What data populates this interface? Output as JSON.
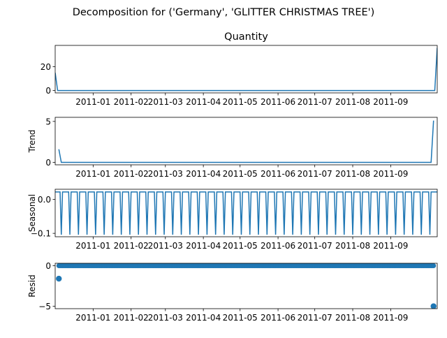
{
  "figure": {
    "suptitle": "Decomposition for ('Germany', 'GLITTER CHRISTMAS TREE')"
  },
  "chart_data": [
    {
      "type": "line",
      "title": "Quantity",
      "ylabel": "",
      "xlim": [
        "2010-12-01",
        "2011-10-09"
      ],
      "ylim": [
        -2,
        38
      ],
      "yticks": [
        0,
        20
      ],
      "xticks": [
        "2011-01",
        "2011-02",
        "2011-03",
        "2011-04",
        "2011-05",
        "2011-06",
        "2011-07",
        "2011-08",
        "2011-09"
      ],
      "color": "#1f77b4",
      "series": [
        {
          "x": [
            "2010-12-01",
            "2010-12-03",
            "2011-10-07",
            "2011-10-09"
          ],
          "y": [
            15,
            0,
            0,
            36
          ]
        }
      ]
    },
    {
      "type": "line",
      "title": "",
      "ylabel": "Trend",
      "xlim": [
        "2010-12-01",
        "2011-10-09"
      ],
      "ylim": [
        -0.3,
        5.5
      ],
      "yticks": [
        0,
        5
      ],
      "xticks": [
        "2011-01",
        "2011-02",
        "2011-03",
        "2011-04",
        "2011-05",
        "2011-06",
        "2011-07",
        "2011-08",
        "2011-09"
      ],
      "color": "#1f77b4",
      "series": [
        {
          "x": [
            "2010-12-04",
            "2010-12-06",
            "2011-10-04",
            "2011-10-06"
          ],
          "y": [
            1.6,
            0,
            0,
            5.1
          ]
        }
      ]
    },
    {
      "type": "line",
      "title": "",
      "ylabel": "Seasonal",
      "xlim": [
        "2010-12-01",
        "2011-10-09"
      ],
      "ylim": [
        -0.11,
        0.03
      ],
      "yticks": [
        0.0,
        -0.1
      ],
      "ytick_labels": [
        "0.0",
        "−0.1"
      ],
      "xticks": [
        "2011-01",
        "2011-02",
        "2011-03",
        "2011-04",
        "2011-05",
        "2011-06",
        "2011-07",
        "2011-08",
        "2011-09"
      ],
      "color": "#1f77b4",
      "series": [
        {
          "pattern": "weekly",
          "start": "2010-12-01",
          "end": "2011-10-09",
          "weekly_values": [
            0.022,
            0.022,
            0.022,
            0.022,
            0.022,
            -0.104,
            0.022
          ]
        }
      ]
    },
    {
      "type": "scatter",
      "title": "",
      "ylabel": "Resid",
      "xlim": [
        "2010-12-01",
        "2011-10-09"
      ],
      "ylim": [
        -5.3,
        0.3
      ],
      "yticks": [
        0,
        -5
      ],
      "ytick_labels": [
        "0",
        "−5"
      ],
      "xticks": [
        "2011-01",
        "2011-02",
        "2011-03",
        "2011-04",
        "2011-05",
        "2011-06",
        "2011-07",
        "2011-08",
        "2011-09"
      ],
      "color": "#1f77b4",
      "series": [
        {
          "x_range": [
            "2010-12-04",
            "2011-10-06"
          ],
          "y_constant": 0,
          "outliers": [
            {
              "x": "2010-12-04",
              "y": -1.6
            },
            {
              "x": "2011-10-06",
              "y": -5.0
            }
          ]
        }
      ]
    }
  ]
}
